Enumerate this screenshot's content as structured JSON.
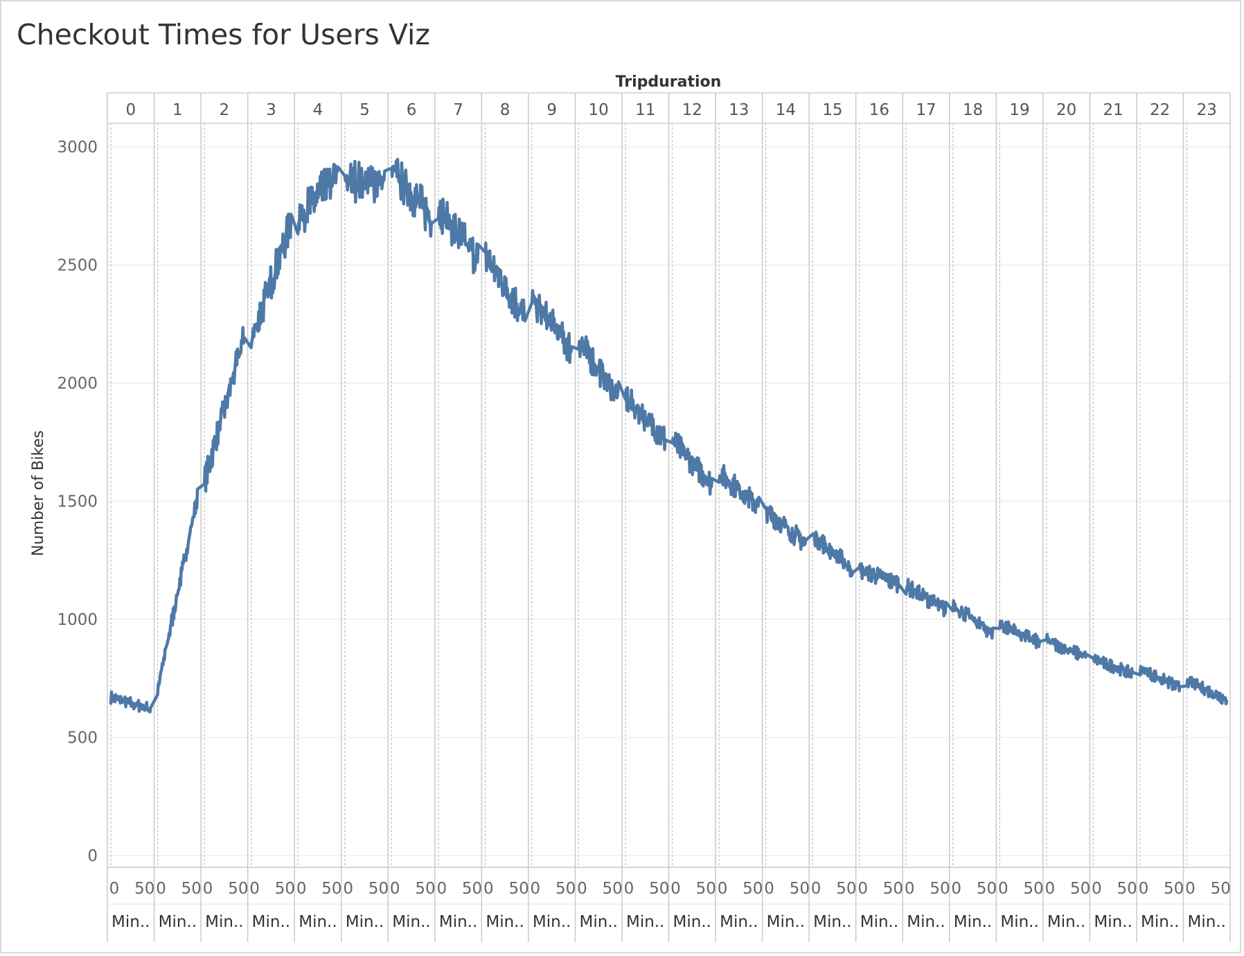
{
  "title": "Checkout Times for Users Viz",
  "chart_data": {
    "type": "line",
    "title": "Checkout Times for Users Viz",
    "column_header": "Tripduration",
    "panel_labels": [
      "0",
      "1",
      "2",
      "3",
      "4",
      "5",
      "6",
      "7",
      "8",
      "9",
      "10",
      "11",
      "12",
      "13",
      "14",
      "15",
      "16",
      "17",
      "18",
      "19",
      "20",
      "21",
      "22",
      "23"
    ],
    "x_tick_labels": [
      "0",
      "50"
    ],
    "x_axis_label": "Min..",
    "xlim": [
      0,
      59
    ],
    "ylabel": "Number of Bikes",
    "ylim": [
      -50,
      3100
    ],
    "y_ticks": [
      0,
      500,
      1000,
      1500,
      2000,
      2500,
      3000
    ],
    "grid": true,
    "line_color": "#4e79a7",
    "series": [
      {
        "hour_trend": [
          [
            670,
            620
          ],
          [
            700,
            1520
          ],
          [
            1580,
            2200
          ],
          [
            2180,
            2680
          ],
          [
            2700,
            2880
          ],
          [
            2860,
            2850
          ],
          [
            2900,
            2700
          ],
          [
            2740,
            2520
          ],
          [
            2540,
            2280
          ],
          [
            2350,
            2140
          ],
          [
            2180,
            1940
          ],
          [
            1940,
            1760
          ],
          [
            1760,
            1570
          ],
          [
            1620,
            1480
          ],
          [
            1460,
            1320
          ],
          [
            1360,
            1210
          ],
          [
            1210,
            1150
          ],
          [
            1140,
            1040
          ],
          [
            1060,
            940
          ],
          [
            980,
            900
          ],
          [
            910,
            840
          ],
          [
            830,
            770
          ],
          [
            790,
            710
          ],
          [
            740,
            660
          ]
        ]
      }
    ]
  }
}
